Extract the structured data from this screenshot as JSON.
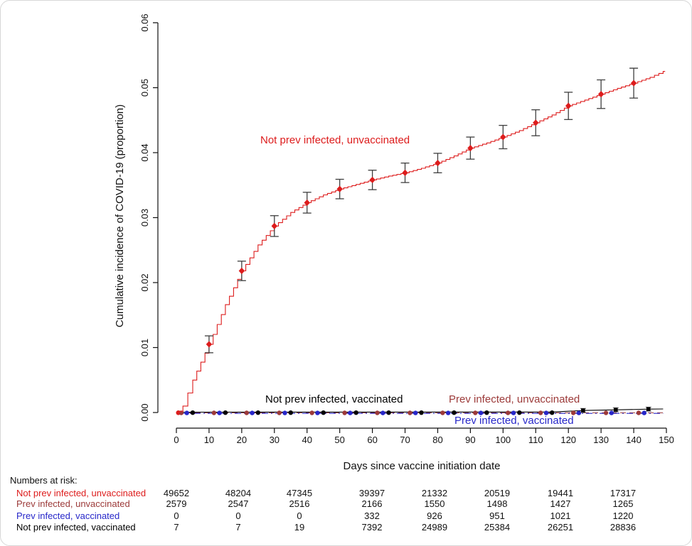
{
  "figure": {
    "curve_labels": {
      "not_prev_unvacc": "Not prev infected, unvaccinated",
      "not_prev_vacc": "Not prev infected, vaccinated",
      "prev_unvacc": "Prev infected, unvaccinated",
      "prev_vacc": "Prev infected, vaccinated"
    },
    "colors": {
      "bright_red": "#dd1c1c",
      "dark_red": "#9c3a39",
      "blue": "#2727c9",
      "black": "#000000",
      "error_bar": "#3f3f3f"
    }
  },
  "chart_data": {
    "type": "line",
    "subtype": "cumulative-incidence-step-curves",
    "title": "",
    "xlabel": "Days since vaccine initiation date",
    "ylabel": "Cumulative incidence of COVID-19 (proportion)",
    "xlim": [
      0,
      150
    ],
    "ylim": [
      0,
      0.06
    ],
    "x_ticks": [
      0,
      10,
      20,
      30,
      40,
      50,
      60,
      70,
      80,
      90,
      100,
      110,
      120,
      130,
      140,
      150
    ],
    "y_ticks": [
      "0.00",
      "0.01",
      "0.02",
      "0.03",
      "0.04",
      "0.05",
      "0.06"
    ],
    "grid": false,
    "legend_position": "labels-on-plot",
    "series": [
      {
        "name": "Not prev infected, unvaccinated",
        "color": "#dd1c1c",
        "line_style": "step-solid",
        "anchors": [
          [
            0,
            0
          ],
          [
            1,
            0.0002
          ],
          [
            2,
            0.001
          ],
          [
            5,
            0.005
          ],
          [
            10,
            0.0105
          ],
          [
            15,
            0.0166
          ],
          [
            20,
            0.0218
          ],
          [
            25,
            0.0258
          ],
          [
            30,
            0.0287
          ],
          [
            35,
            0.0308
          ],
          [
            40,
            0.0323
          ],
          [
            45,
            0.0335
          ],
          [
            50,
            0.0344
          ],
          [
            55,
            0.0351
          ],
          [
            60,
            0.0358
          ],
          [
            65,
            0.0364
          ],
          [
            70,
            0.0369
          ],
          [
            75,
            0.0376
          ],
          [
            80,
            0.0384
          ],
          [
            85,
            0.0395
          ],
          [
            90,
            0.0407
          ],
          [
            95,
            0.0415
          ],
          [
            100,
            0.0424
          ],
          [
            105,
            0.0434
          ],
          [
            110,
            0.0446
          ],
          [
            115,
            0.0458
          ],
          [
            120,
            0.0472
          ],
          [
            125,
            0.0481
          ],
          [
            130,
            0.049
          ],
          [
            135,
            0.0499
          ],
          [
            140,
            0.0507
          ],
          [
            145,
            0.0516
          ],
          [
            149,
            0.0525
          ]
        ],
        "error_points": [
          [
            10,
            0.0105,
            0.0013
          ],
          [
            20,
            0.0218,
            0.0015
          ],
          [
            30,
            0.0287,
            0.0016
          ],
          [
            40,
            0.0323,
            0.0016
          ],
          [
            50,
            0.0344,
            0.0015
          ],
          [
            60,
            0.0358,
            0.0015
          ],
          [
            70,
            0.0369,
            0.0015
          ],
          [
            80,
            0.0384,
            0.0015
          ],
          [
            90,
            0.0407,
            0.0017
          ],
          [
            100,
            0.0424,
            0.0018
          ],
          [
            110,
            0.0446,
            0.002
          ],
          [
            120,
            0.0472,
            0.0021
          ],
          [
            130,
            0.049,
            0.0022
          ],
          [
            140,
            0.0507,
            0.0023
          ]
        ],
        "start_marker_day": 0.6
      },
      {
        "name": "Prev infected, unvaccinated",
        "color": "#9c3a39",
        "line_style": "dashed",
        "approx_value": 0.0001,
        "marker_days": [
          1.5,
          11.5,
          21.5,
          31.5,
          41.5,
          51.5,
          61.5,
          71.5,
          81.5,
          91.5,
          101.5,
          111.5,
          121.5,
          131.5,
          141.5
        ]
      },
      {
        "name": "Prev infected, vaccinated",
        "color": "#2727c9",
        "line_style": "dash-dot",
        "approx_value": 0.0,
        "marker_days": [
          3.2,
          13.2,
          23.2,
          33.2,
          43.2,
          53.2,
          63.2,
          73.2,
          83.2,
          93.2,
          103.2,
          113.2,
          123.2,
          133.2,
          143.2
        ]
      },
      {
        "name": "Not prev infected, vaccinated",
        "color": "#000000",
        "line_style": "solid",
        "anchors": [
          [
            0,
            5e-05
          ],
          [
            115,
            8e-05
          ],
          [
            125,
            0.00032
          ],
          [
            135,
            0.00042
          ],
          [
            145,
            0.00052
          ],
          [
            149,
            0.00055
          ]
        ],
        "marker_days": [
          5,
          15,
          25,
          35,
          45,
          55,
          65,
          75,
          85,
          95,
          105,
          115
        ],
        "end_points": [
          [
            124.5,
            0.00032,
            0.0003
          ],
          [
            134.5,
            0.00042,
            0.0003
          ],
          [
            144.5,
            0.00052,
            0.0003
          ]
        ]
      }
    ]
  },
  "risk_table": {
    "title": "Numbers at risk:",
    "column_days": [
      0,
      20,
      40,
      60,
      80,
      100,
      120,
      140
    ],
    "rows": [
      {
        "label": "Not prev infected, unvaccinated",
        "color": "#dd1c1c",
        "values": [
          49652,
          48204,
          47345,
          39397,
          21332,
          20519,
          19441,
          17317
        ]
      },
      {
        "label": "Prev infected, unvaccinated",
        "color": "#9c3a39",
        "values": [
          2579,
          2547,
          2516,
          2166,
          1550,
          1498,
          1427,
          1265
        ]
      },
      {
        "label": "Prev infected, vaccinated",
        "color": "#2727c9",
        "values": [
          0,
          0,
          0,
          332,
          926,
          951,
          1021,
          1220
        ]
      },
      {
        "label": "Not prev infected, vaccinated",
        "color": "#000000",
        "values": [
          7,
          7,
          19,
          7392,
          24989,
          25384,
          26251,
          28836
        ]
      }
    ]
  }
}
